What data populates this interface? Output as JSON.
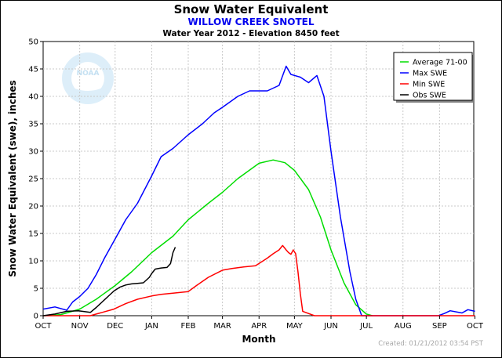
{
  "chart_data": {
    "type": "line",
    "title": "Snow Water Equivalent",
    "subtitle": "WILLOW CREEK SNOTEL",
    "subtitle2": "Water Year 2012 - Elevation 8450 feet",
    "xlabel": "Month",
    "ylabel": "Snow Water Equivalent (swe), inches",
    "ylim": [
      0,
      50
    ],
    "xlim": [
      0,
      365
    ],
    "yticks": [
      0,
      5,
      10,
      15,
      20,
      25,
      30,
      35,
      40,
      45,
      50
    ],
    "month_labels": [
      "OCT",
      "NOV",
      "DEC",
      "JAN",
      "FEB",
      "MAR",
      "APR",
      "MAY",
      "JUN",
      "JUL",
      "AUG",
      "SEP",
      "OCT"
    ],
    "month_days": [
      0,
      31,
      61,
      92,
      123,
      152,
      183,
      213,
      244,
      274,
      305,
      336,
      366
    ],
    "created": "Created: 01/21/2012 03:54 PST",
    "legend_position": "top-right",
    "grid": true,
    "series": [
      {
        "name": "Average 71-00",
        "color": "#00dd00",
        "x": [
          0,
          15,
          31,
          45,
          61,
          75,
          92,
          110,
          123,
          140,
          152,
          165,
          183,
          195,
          205,
          213,
          225,
          235,
          244,
          255,
          265,
          274,
          279
        ],
        "y": [
          0,
          0.2,
          1.2,
          3,
          5.5,
          8,
          11.5,
          14.5,
          17.5,
          20.5,
          22.5,
          25,
          27.8,
          28.4,
          27.9,
          26.5,
          23,
          18,
          12,
          6,
          2,
          0.3,
          0
        ]
      },
      {
        "name": "Max SWE",
        "color": "#0000ff",
        "x": [
          0,
          10,
          20,
          25,
          31,
          38,
          45,
          52,
          61,
          70,
          80,
          92,
          100,
          110,
          123,
          135,
          145,
          152,
          165,
          175,
          183,
          190,
          200,
          206,
          210,
          218,
          225,
          232,
          238,
          244,
          252,
          260,
          265,
          270,
          275,
          280,
          300,
          320,
          335,
          340,
          345,
          355,
          360,
          366
        ],
        "y": [
          1.2,
          1.6,
          1.0,
          2.5,
          3.5,
          5,
          7.5,
          10.5,
          14,
          17.5,
          20.5,
          25.5,
          29,
          30.5,
          33,
          35,
          37,
          38,
          40,
          41,
          41,
          41,
          42,
          45.5,
          44,
          43.5,
          42.5,
          43.8,
          40,
          30,
          18,
          8,
          3,
          0,
          0,
          0,
          0,
          0,
          0,
          0.4,
          0.9,
          0.5,
          1.1,
          0.8
        ]
      },
      {
        "name": "Min SWE",
        "color": "#ff0000",
        "x": [
          0,
          40,
          45,
          50,
          60,
          70,
          80,
          92,
          100,
          110,
          123,
          130,
          140,
          152,
          160,
          170,
          180,
          185,
          190,
          195,
          200,
          203,
          206,
          208,
          210,
          212,
          214,
          216,
          218,
          220,
          230,
          366
        ],
        "y": [
          0,
          0,
          0.3,
          0.6,
          1.2,
          2.2,
          3,
          3.6,
          3.9,
          4.1,
          4.4,
          5.5,
          7,
          8.3,
          8.6,
          8.9,
          9.1,
          9.8,
          10.5,
          11.3,
          12,
          12.8,
          12,
          11.5,
          11.2,
          12,
          11.3,
          8,
          4,
          0.8,
          0,
          0
        ]
      },
      {
        "name": "Obs SWE",
        "color": "#000000",
        "x": [
          0,
          10,
          20,
          30,
          40,
          45,
          50,
          55,
          60,
          65,
          70,
          75,
          80,
          85,
          90,
          92,
          95,
          100,
          105,
          108,
          110,
          112
        ],
        "y": [
          0,
          0.3,
          0.8,
          0.9,
          0.6,
          1.5,
          2.5,
          3.5,
          4.5,
          5.2,
          5.6,
          5.8,
          5.9,
          6.0,
          7.0,
          7.7,
          8.5,
          8.7,
          8.8,
          9.5,
          11.5,
          12.5
        ]
      }
    ]
  }
}
